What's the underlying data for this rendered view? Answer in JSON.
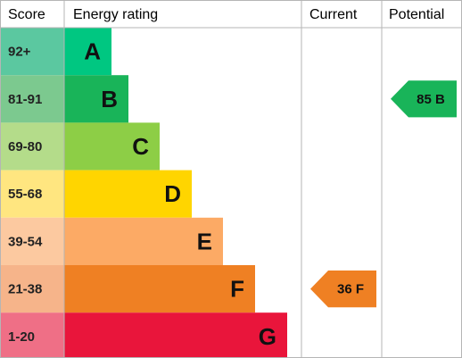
{
  "headers": {
    "score": "Score",
    "rating": "Energy rating",
    "current": "Current",
    "potential": "Potential"
  },
  "chart_data": {
    "type": "bar",
    "categories": [
      "A",
      "B",
      "C",
      "D",
      "E",
      "F",
      "G"
    ],
    "scores": [
      "92+",
      "81-91",
      "69-80",
      "55-68",
      "39-54",
      "21-38",
      "1-20"
    ],
    "colors": [
      "#00c781",
      "#19b459",
      "#8dce46",
      "#ffd500",
      "#fcaa65",
      "#ef8023",
      "#e9153b"
    ],
    "score_cell_colors": [
      "#5bc8a0",
      "#7cc98f",
      "#b4dc8a",
      "#ffe680",
      "#fcc9a0",
      "#f6b48a",
      "#ef6f86"
    ],
    "current": {
      "value": 36,
      "band": "F",
      "label": "36 F",
      "color": "#ef8023"
    },
    "potential": {
      "value": 85,
      "band": "B",
      "label": "85 B",
      "color": "#19b459"
    }
  }
}
